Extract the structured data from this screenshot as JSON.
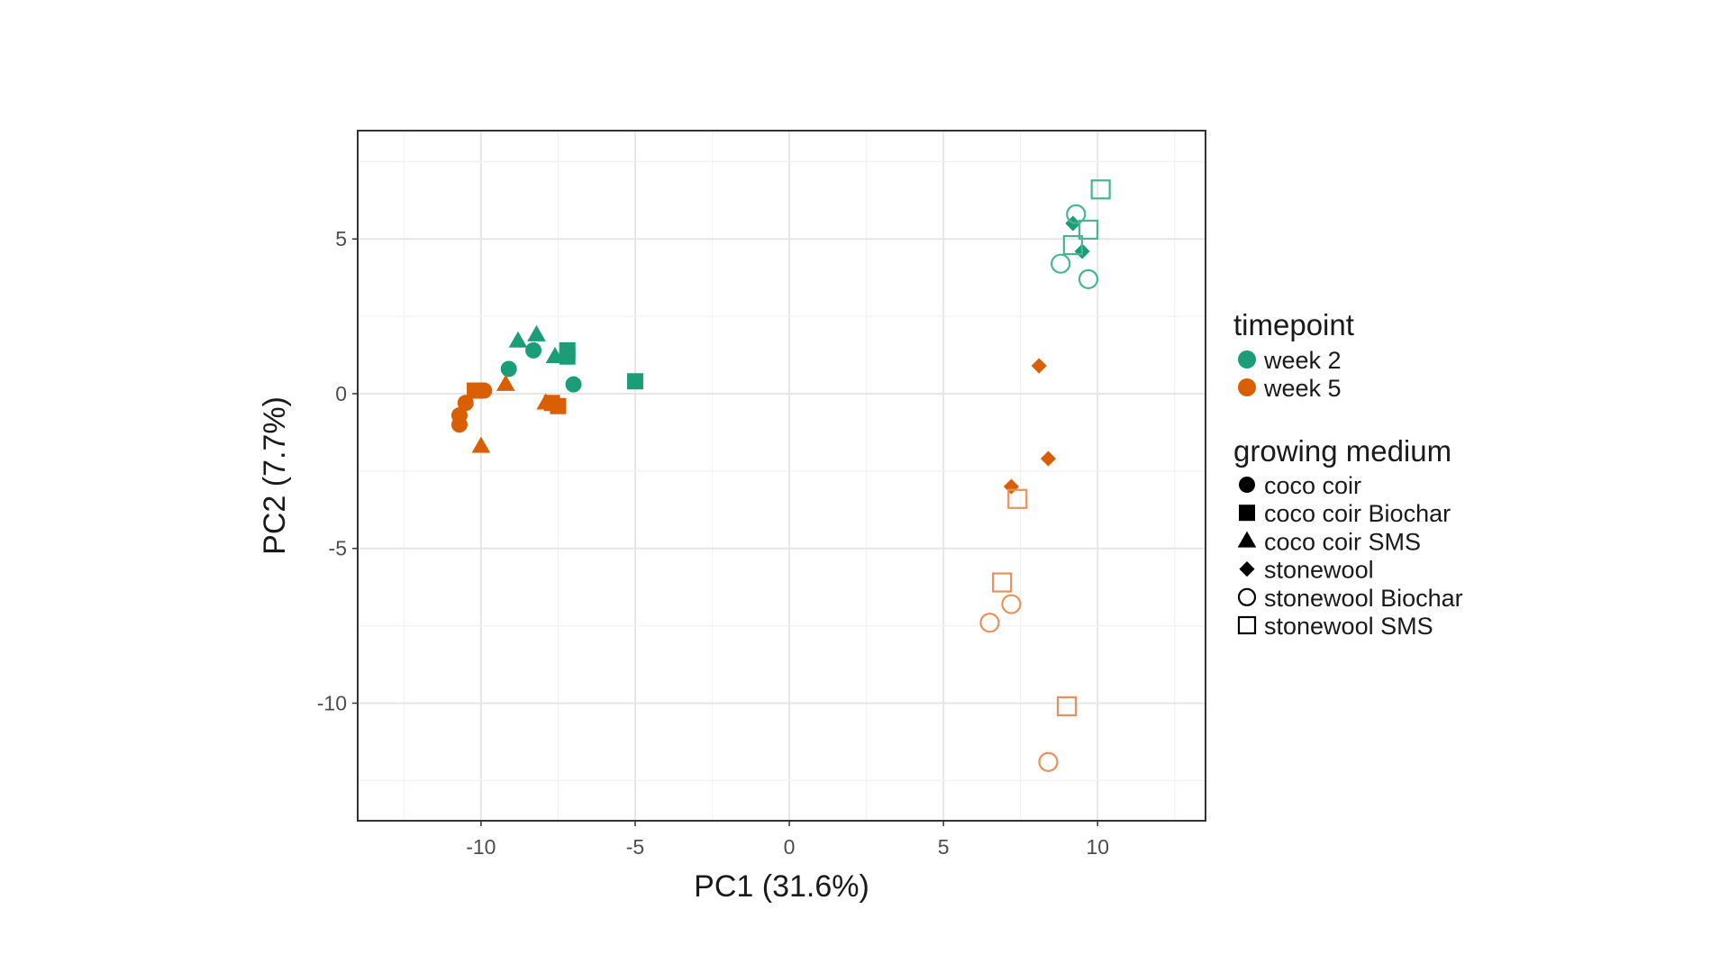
{
  "chart_data": {
    "type": "scatter",
    "title": "",
    "xlabel": "PC1 (31.6%)",
    "ylabel": "PC2 (7.7%)",
    "xlim": [
      -14,
      13.5
    ],
    "ylim": [
      -13.8,
      8.5
    ],
    "xticks": [
      -10,
      -5,
      0,
      5,
      10
    ],
    "xtick_labels": [
      "-10",
      "-5",
      "0",
      "5",
      "10"
    ],
    "yticks": [
      5,
      0,
      -5,
      -10
    ],
    "ytick_labels": [
      "5",
      "0",
      "-5",
      "-10"
    ],
    "grid": true,
    "legend_position": "right",
    "colors": {
      "week 2": "#1b9e77",
      "week 5": "#d95f02",
      "week 5 hollow": "#e8915a",
      "week 2 hollow": "#45b592"
    },
    "legend": {
      "color_title": "timepoint",
      "color_entries": [
        {
          "label": "week 2",
          "color": "#1b9e77"
        },
        {
          "label": "week 5",
          "color": "#d95f02"
        }
      ],
      "shape_title": "growing medium",
      "shape_entries": [
        {
          "label": "coco coir",
          "shape": "circle-filled"
        },
        {
          "label": "coco coir Biochar",
          "shape": "square-filled"
        },
        {
          "label": "coco coir SMS",
          "shape": "triangle-filled"
        },
        {
          "label": "stonewool",
          "shape": "diamond-filled"
        },
        {
          "label": "stonewool Biochar",
          "shape": "circle-open"
        },
        {
          "label": "stonewool SMS",
          "shape": "square-open"
        }
      ]
    },
    "series": [
      {
        "timepoint": "week 2",
        "medium": "coco coir",
        "shape": "circle-filled",
        "points": [
          [
            -9.1,
            0.8
          ],
          [
            -8.3,
            1.4
          ],
          [
            -7.0,
            0.3
          ]
        ]
      },
      {
        "timepoint": "week 2",
        "medium": "coco coir Biochar",
        "shape": "square-filled",
        "points": [
          [
            -7.2,
            1.4
          ],
          [
            -7.2,
            1.2
          ],
          [
            -5.0,
            0.4
          ]
        ]
      },
      {
        "timepoint": "week 2",
        "medium": "coco coir SMS",
        "shape": "triangle-filled",
        "points": [
          [
            -8.8,
            1.7
          ],
          [
            -8.2,
            1.9
          ],
          [
            -7.6,
            1.2
          ]
        ]
      },
      {
        "timepoint": "week 2",
        "medium": "stonewool",
        "shape": "diamond-filled",
        "points": [
          [
            9.2,
            5.5
          ],
          [
            9.5,
            4.6
          ]
        ]
      },
      {
        "timepoint": "week 2",
        "medium": "stonewool Biochar",
        "shape": "circle-open",
        "points": [
          [
            9.3,
            5.8
          ],
          [
            8.8,
            4.2
          ],
          [
            9.7,
            3.7
          ]
        ]
      },
      {
        "timepoint": "week 2",
        "medium": "stonewool SMS",
        "shape": "square-open",
        "points": [
          [
            10.1,
            6.6
          ],
          [
            9.7,
            5.3
          ],
          [
            9.2,
            4.8
          ]
        ]
      },
      {
        "timepoint": "week 5",
        "medium": "coco coir",
        "shape": "circle-filled",
        "points": [
          [
            -10.5,
            -0.3
          ],
          [
            -10.7,
            -0.7
          ],
          [
            -10.7,
            -1.0
          ],
          [
            -9.9,
            0.1
          ]
        ]
      },
      {
        "timepoint": "week 5",
        "medium": "coco coir Biochar",
        "shape": "square-filled",
        "points": [
          [
            -10.2,
            0.1
          ],
          [
            -7.5,
            -0.4
          ],
          [
            -7.7,
            -0.3
          ]
        ]
      },
      {
        "timepoint": "week 5",
        "medium": "coco coir SMS",
        "shape": "triangle-filled",
        "points": [
          [
            -9.2,
            0.3
          ],
          [
            -7.9,
            -0.3
          ],
          [
            -10.0,
            -1.7
          ]
        ]
      },
      {
        "timepoint": "week 5",
        "medium": "stonewool",
        "shape": "diamond-filled",
        "points": [
          [
            8.1,
            0.9
          ],
          [
            8.4,
            -2.1
          ],
          [
            7.2,
            -3.0
          ]
        ]
      },
      {
        "timepoint": "week 5",
        "medium": "stonewool Biochar",
        "shape": "circle-open",
        "points": [
          [
            7.2,
            -6.8
          ],
          [
            6.5,
            -7.4
          ],
          [
            8.4,
            -11.9
          ]
        ]
      },
      {
        "timepoint": "week 5",
        "medium": "stonewool SMS",
        "shape": "square-open",
        "points": [
          [
            7.4,
            -3.4
          ],
          [
            6.9,
            -6.1
          ],
          [
            9.0,
            -10.1
          ]
        ]
      }
    ]
  }
}
